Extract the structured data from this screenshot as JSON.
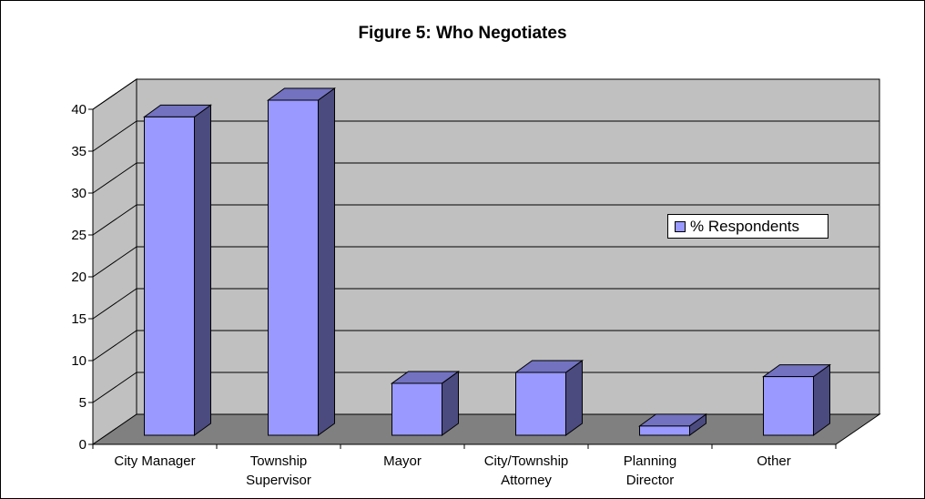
{
  "chart_data": {
    "type": "bar",
    "title": "Figure 5:  Who Negotiates",
    "categories": [
      [
        "City Manager"
      ],
      [
        "Township",
        "Supervisor"
      ],
      [
        "Mayor"
      ],
      [
        "City/Township",
        "Attorney"
      ],
      [
        "Planning",
        "Director"
      ],
      [
        "Other"
      ]
    ],
    "series": [
      {
        "name": "% Respondents",
        "values": [
          38,
          40,
          6.2,
          7.5,
          1.1,
          7
        ]
      }
    ],
    "ylim": [
      0,
      40
    ],
    "yticks": [
      "0",
      "5",
      "10",
      "15",
      "20",
      "25",
      "30",
      "35",
      "40"
    ],
    "legend": {
      "position": "right"
    },
    "grid": true,
    "style": "3d",
    "colors": {
      "bar_front": "#9999ff",
      "bar_side": "#4b4b80",
      "bar_top": "#7272c0",
      "wall": "#c0c0c0",
      "floor": "#808080"
    }
  }
}
